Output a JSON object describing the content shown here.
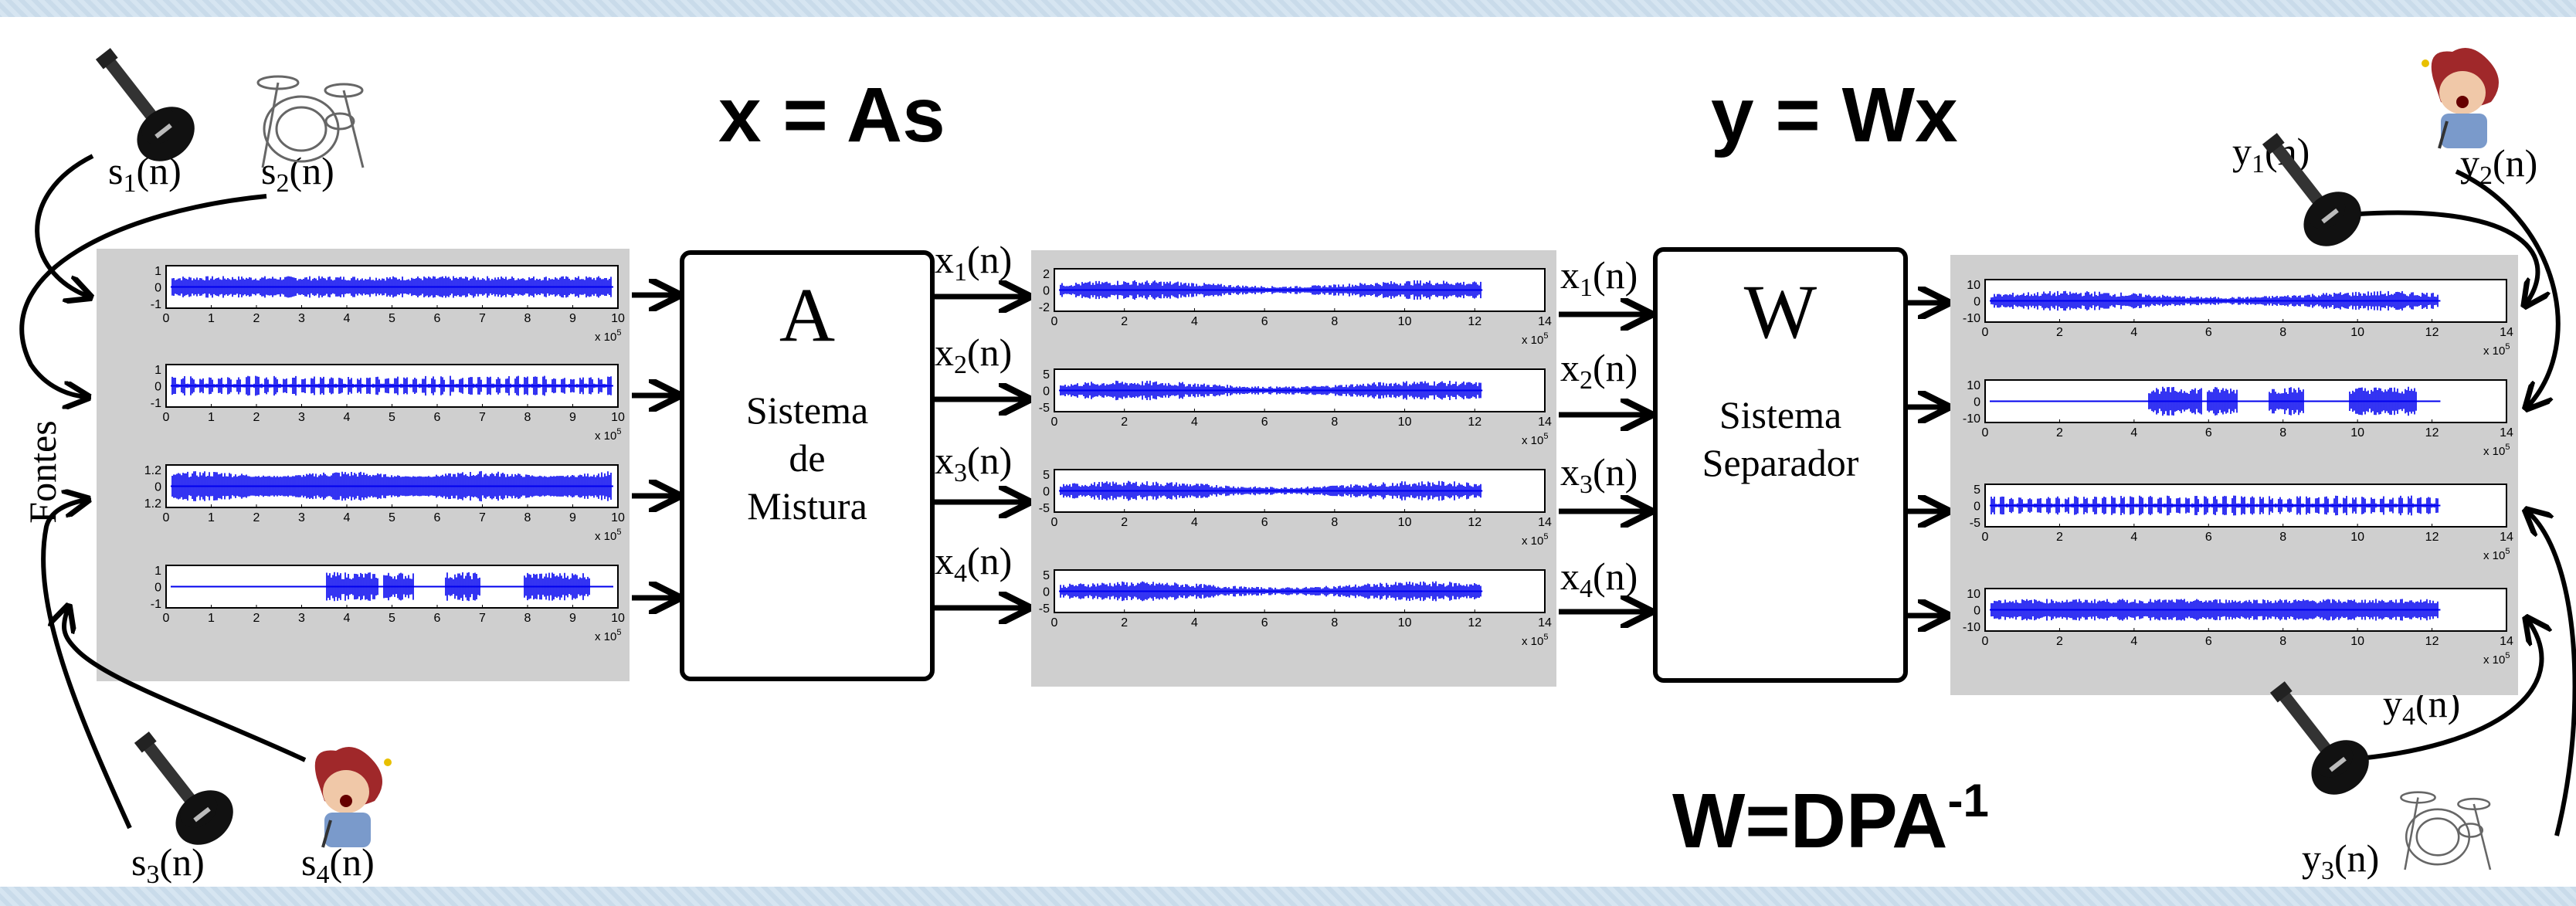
{
  "equations": {
    "mixing": "x = As",
    "separation": "y = Wx",
    "w_def_main": "W=DPA",
    "w_def_exp": "-1"
  },
  "side_label": "Fontes",
  "mixing_box": {
    "symbol": "A",
    "line1": "Sistema",
    "line2": "de",
    "line3": "Mistura"
  },
  "separator_box": {
    "symbol": "W",
    "line1": "Sistema",
    "line2": "Separador"
  },
  "signals": {
    "sources": [
      {
        "base": "s",
        "sub": "1",
        "arg": "(n)"
      },
      {
        "base": "s",
        "sub": "2",
        "arg": "(n)"
      },
      {
        "base": "s",
        "sub": "3",
        "arg": "(n)"
      },
      {
        "base": "s",
        "sub": "4",
        "arg": "(n)"
      }
    ],
    "mixtures": [
      {
        "base": "x",
        "sub": "1",
        "arg": "(n)"
      },
      {
        "base": "x",
        "sub": "2",
        "arg": "(n)"
      },
      {
        "base": "x",
        "sub": "3",
        "arg": "(n)"
      },
      {
        "base": "x",
        "sub": "4",
        "arg": "(n)"
      }
    ],
    "outputs": [
      {
        "base": "y",
        "sub": "1",
        "arg": "(n)"
      },
      {
        "base": "y",
        "sub": "2",
        "arg": "(n)"
      },
      {
        "base": "y",
        "sub": "3",
        "arg": "(n)"
      },
      {
        "base": "y",
        "sub": "4",
        "arg": "(n)"
      }
    ]
  },
  "instrument_icons": [
    "electric-guitar-icon",
    "drum-kit-icon",
    "singer-icon"
  ],
  "colors": {
    "waveform": "#0000ee",
    "panel": "#cfcfcf",
    "ink": "#000000"
  },
  "plots": {
    "source_plots": {
      "x_ticks": [
        "0",
        "1",
        "2",
        "3",
        "4",
        "5",
        "6",
        "7",
        "8",
        "9",
        "10"
      ],
      "x_multiplier": "x 10",
      "x_multiplier_exp": "5",
      "rows": [
        {
          "y_ticks": [
            "1",
            "0",
            "-1"
          ]
        },
        {
          "y_ticks": [
            "1",
            "0",
            "-1"
          ]
        },
        {
          "y_ticks": [
            "1.2",
            "0",
            "1.2"
          ]
        },
        {
          "y_ticks": [
            "1",
            "0",
            "-1"
          ]
        }
      ]
    },
    "mixture_plots": {
      "x_ticks": [
        "0",
        "2",
        "4",
        "6",
        "8",
        "10",
        "12",
        "14"
      ],
      "x_multiplier": "x 10",
      "x_multiplier_exp": "5",
      "rows": [
        {
          "y_ticks": [
            "2",
            "0",
            "-2"
          ]
        },
        {
          "y_ticks": [
            "5",
            "0",
            "-5"
          ]
        },
        {
          "y_ticks": [
            "5",
            "0",
            "-5"
          ]
        },
        {
          "y_ticks": [
            "5",
            "0",
            "-5"
          ]
        }
      ]
    },
    "output_plots": {
      "x_ticks": [
        "0",
        "2",
        "4",
        "6",
        "8",
        "10",
        "12",
        "14"
      ],
      "x_multiplier": "x 10",
      "x_multiplier_exp": "5",
      "rows": [
        {
          "y_ticks": [
            "10",
            "0",
            "-10"
          ]
        },
        {
          "y_ticks": [
            "10",
            "0",
            "-10"
          ]
        },
        {
          "y_ticks": [
            "5",
            "0",
            "-5"
          ]
        },
        {
          "y_ticks": [
            "10",
            "0",
            "-10"
          ]
        }
      ]
    }
  }
}
